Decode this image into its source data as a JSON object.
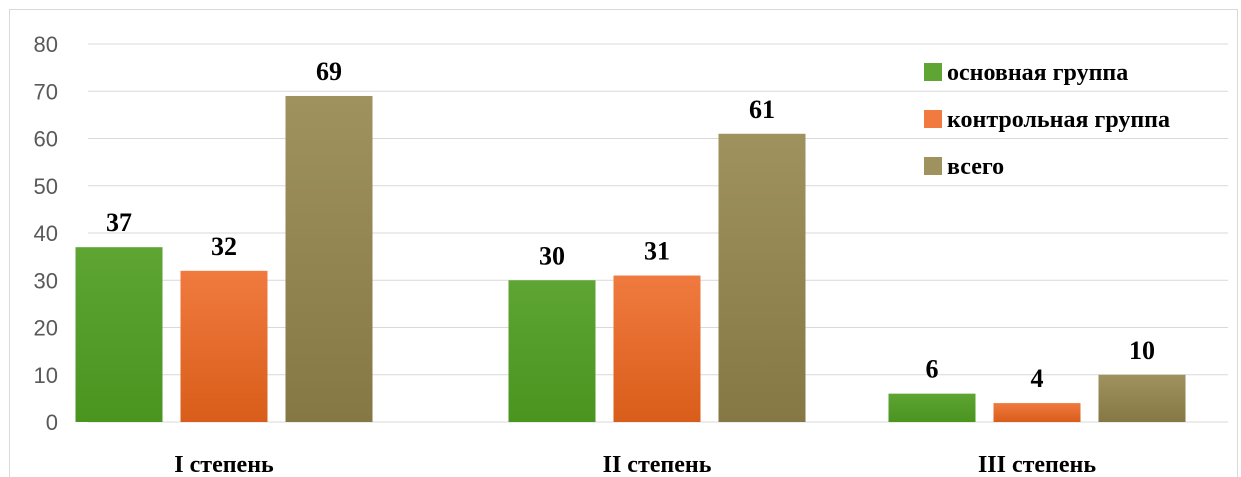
{
  "chart_data": {
    "type": "bar",
    "title": "",
    "xlabel": "",
    "ylabel": "",
    "ylim": [
      0,
      80
    ],
    "yticks": [
      0,
      10,
      20,
      30,
      40,
      50,
      60,
      70,
      80
    ],
    "grid": true,
    "legend_position": "top-right",
    "categories": [
      "I степень",
      "II степень",
      "III степень"
    ],
    "series": [
      {
        "name": "основная группа",
        "values": [
          37,
          30,
          6
        ],
        "color": "#5ea534",
        "color_dark": "#4a9420"
      },
      {
        "name": "контрольная группа",
        "values": [
          32,
          31,
          4
        ],
        "color": "#f07a3f",
        "color_dark": "#d95d1a"
      },
      {
        "name": "всего",
        "values": [
          69,
          61,
          10
        ],
        "color": "#9f925e",
        "color_dark": "#857845"
      }
    ]
  }
}
